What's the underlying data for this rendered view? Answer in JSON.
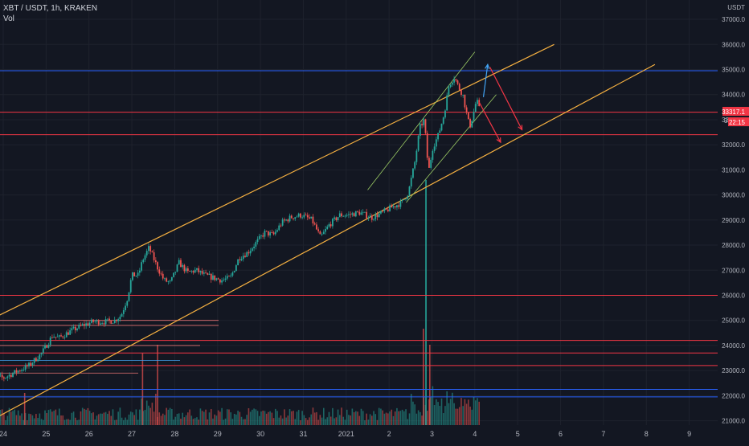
{
  "header": {
    "symbol_line": "XBT / USDT, 1h, KRAKEN",
    "volume_label": "Vol"
  },
  "price_axis": {
    "currency": "USDT",
    "ticks": [
      "37000.0",
      "36000.0",
      "35000.0",
      "34000.0",
      "33000.0",
      "32000.0",
      "31000.0",
      "30000.0",
      "29000.0",
      "28000.0",
      "27000.0",
      "26000.0",
      "25000.0",
      "24000.0",
      "23000.0",
      "22000.0",
      "21000.0"
    ],
    "last_price_label": "33317.1",
    "countdown_label": "22:15",
    "partial_label": "3"
  },
  "time_axis": {
    "ticks": [
      "24",
      "25",
      "26",
      "27",
      "28",
      "29",
      "30",
      "31",
      "2021",
      "2",
      "3",
      "4",
      "5",
      "6",
      "7",
      "8",
      "9"
    ]
  },
  "colors": {
    "background": "#131722",
    "up": "#26a69a",
    "down": "#ef5350",
    "channel": "#f5b041",
    "blue_level": "#2962ff",
    "red_level": "#f23645",
    "green_trend": "#9ccc65",
    "projection_up": "#42a5f5",
    "projection_down": "#f23645"
  },
  "chart_data": {
    "type": "candlestick",
    "symbol": "XBT / USDT",
    "interval": "1h",
    "exchange": "KRAKEN",
    "ylim": [
      20900,
      37400
    ],
    "y_unit": "USDT",
    "last_price": 33317.1,
    "price_path": [
      [
        23.6,
        22900
      ],
      [
        24.0,
        22700
      ],
      [
        24.3,
        22950
      ],
      [
        24.6,
        23200
      ],
      [
        24.9,
        23700
      ],
      [
        25.15,
        24400
      ],
      [
        25.3,
        24300
      ],
      [
        25.6,
        24600
      ],
      [
        25.85,
        24800
      ],
      [
        26.1,
        24950
      ],
      [
        26.4,
        24950
      ],
      [
        26.6,
        25000
      ],
      [
        26.75,
        25200
      ],
      [
        26.9,
        25900
      ],
      [
        27.0,
        26800
      ],
      [
        27.15,
        26800
      ],
      [
        27.25,
        27400
      ],
      [
        27.4,
        27900
      ],
      [
        27.6,
        27100
      ],
      [
        27.75,
        26600
      ],
      [
        27.9,
        26500
      ],
      [
        28.1,
        27300
      ],
      [
        28.3,
        26900
      ],
      [
        28.5,
        27000
      ],
      [
        28.7,
        26800
      ],
      [
        28.9,
        26700
      ],
      [
        29.1,
        26600
      ],
      [
        29.3,
        26700
      ],
      [
        29.5,
        27500
      ],
      [
        29.7,
        27700
      ],
      [
        29.9,
        28100
      ],
      [
        30.1,
        28500
      ],
      [
        30.3,
        28400
      ],
      [
        30.5,
        28900
      ],
      [
        30.7,
        29100
      ],
      [
        30.95,
        29200
      ],
      [
        31.2,
        29000
      ],
      [
        31.4,
        28300
      ],
      [
        31.6,
        28800
      ],
      [
        31.85,
        29200
      ],
      [
        32.05,
        29200
      ],
      [
        32.3,
        29300
      ],
      [
        32.6,
        29100
      ],
      [
        32.85,
        29300
      ],
      [
        33.05,
        29500
      ],
      [
        33.3,
        29700
      ],
      [
        33.45,
        30100
      ],
      [
        33.6,
        31300
      ],
      [
        33.72,
        32700
      ],
      [
        33.82,
        33000
      ],
      [
        33.92,
        30900
      ],
      [
        34.02,
        31900
      ],
      [
        34.15,
        32400
      ],
      [
        34.28,
        33200
      ],
      [
        34.4,
        34400
      ],
      [
        34.52,
        34700
      ],
      [
        34.62,
        34300
      ],
      [
        34.72,
        34000
      ],
      [
        34.8,
        33300
      ],
      [
        34.88,
        32700
      ],
      [
        34.96,
        33200
      ],
      [
        35.04,
        33800
      ],
      [
        35.12,
        33317
      ]
    ],
    "volume_spike_date": "3",
    "horizontal_levels": [
      {
        "price": 34950,
        "color": "blue"
      },
      {
        "price": 33300,
        "color": "red"
      },
      {
        "price": 32400,
        "color": "red"
      },
      {
        "price": 26000,
        "color": "red"
      },
      {
        "price": 24200,
        "color": "red"
      },
      {
        "price": 23700,
        "color": "red"
      },
      {
        "price": 23200,
        "color": "red"
      },
      {
        "price": 22250,
        "color": "blue"
      },
      {
        "price": 21950,
        "color": "blue"
      }
    ],
    "channel_upper": [
      [
        23.6,
        24950
      ],
      [
        36.85,
        36000
      ]
    ],
    "channel_lower": [
      [
        23.7,
        21000
      ],
      [
        39.2,
        35200
      ]
    ],
    "projections": [
      {
        "from": [
          35.2,
          33900
        ],
        "to": [
          35.3,
          35200
        ],
        "direction": "up"
      },
      {
        "from": [
          35.35,
          35100
        ],
        "to": [
          36.1,
          32600
        ],
        "direction": "down"
      },
      {
        "from": [
          35.1,
          33700
        ],
        "to": [
          35.6,
          32100
        ],
        "direction": "down"
      }
    ]
  }
}
